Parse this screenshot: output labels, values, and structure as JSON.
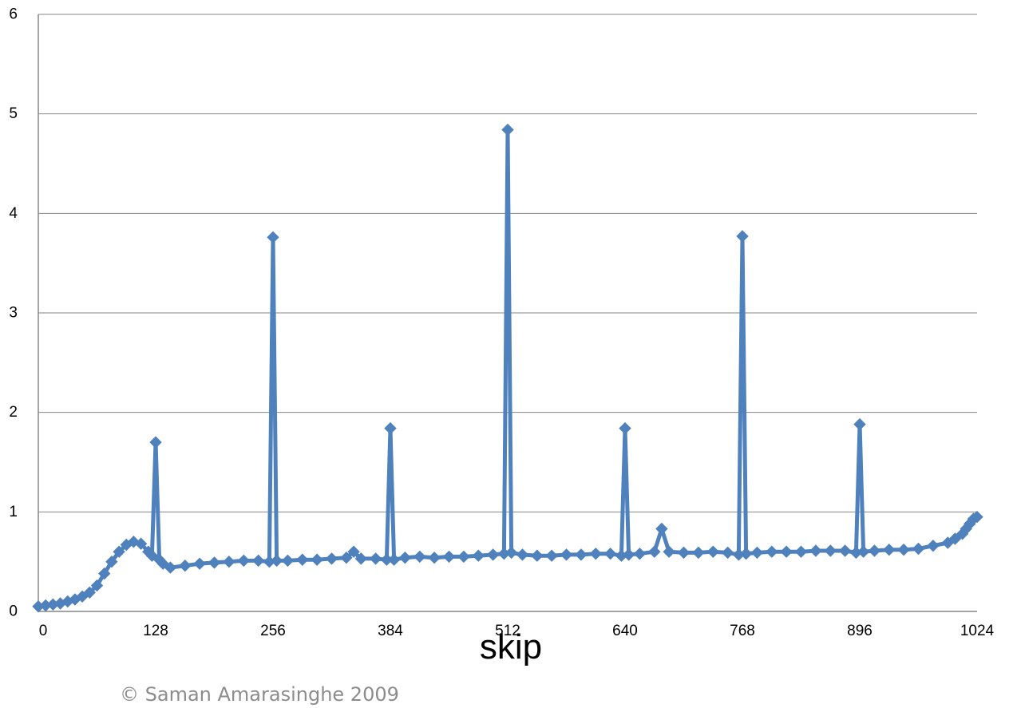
{
  "chart_data": {
    "type": "line",
    "xlabel": "skip",
    "ylabel": "",
    "xlim": [
      0,
      1024
    ],
    "ylim": [
      0,
      6
    ],
    "x_ticks": [
      "0",
      "128",
      "256",
      "384",
      "512",
      "640",
      "768",
      "896",
      "1024"
    ],
    "y_ticks": [
      "0",
      "1",
      "2",
      "3",
      "4",
      "5",
      "6"
    ],
    "grid": "horizontal",
    "legend": "none",
    "series_color": "#4f81bd",
    "marker": "diamond",
    "series": [
      {
        "x": [
          0,
          8,
          16,
          24,
          32,
          40,
          48,
          56,
          64,
          72,
          80,
          88,
          96,
          104,
          112,
          120,
          124,
          128,
          132,
          136,
          144,
          160,
          176,
          192,
          208,
          224,
          240,
          252,
          256,
          260,
          272,
          288,
          304,
          320,
          336,
          344,
          352,
          368,
          380,
          384,
          388,
          400,
          416,
          432,
          448,
          464,
          480,
          496,
          508,
          512,
          516,
          528,
          544,
          560,
          576,
          592,
          608,
          624,
          636,
          640,
          644,
          656,
          672,
          680,
          688,
          704,
          720,
          736,
          752,
          764,
          768,
          772,
          784,
          800,
          816,
          832,
          848,
          864,
          880,
          892,
          896,
          900,
          912,
          928,
          944,
          960,
          976,
          992,
          1000,
          1008,
          1012,
          1016,
          1020,
          1024
        ],
        "y": [
          0.05,
          0.06,
          0.07,
          0.08,
          0.1,
          0.12,
          0.15,
          0.19,
          0.26,
          0.38,
          0.5,
          0.6,
          0.67,
          0.7,
          0.68,
          0.6,
          0.56,
          1.7,
          0.52,
          0.48,
          0.44,
          0.46,
          0.48,
          0.49,
          0.5,
          0.51,
          0.51,
          0.5,
          3.76,
          0.51,
          0.51,
          0.52,
          0.52,
          0.53,
          0.54,
          0.6,
          0.53,
          0.53,
          0.52,
          1.84,
          0.52,
          0.54,
          0.55,
          0.54,
          0.55,
          0.55,
          0.56,
          0.57,
          0.58,
          4.84,
          0.59,
          0.57,
          0.56,
          0.56,
          0.57,
          0.57,
          0.58,
          0.58,
          0.56,
          1.84,
          0.57,
          0.58,
          0.6,
          0.83,
          0.6,
          0.59,
          0.59,
          0.6,
          0.59,
          0.57,
          3.77,
          0.58,
          0.59,
          0.6,
          0.6,
          0.6,
          0.61,
          0.61,
          0.61,
          0.59,
          1.88,
          0.6,
          0.61,
          0.62,
          0.62,
          0.63,
          0.66,
          0.69,
          0.73,
          0.78,
          0.83,
          0.88,
          0.93,
          0.95
        ]
      }
    ]
  },
  "footer": {
    "copyright": "© Saman Amarasinghe 2009"
  }
}
